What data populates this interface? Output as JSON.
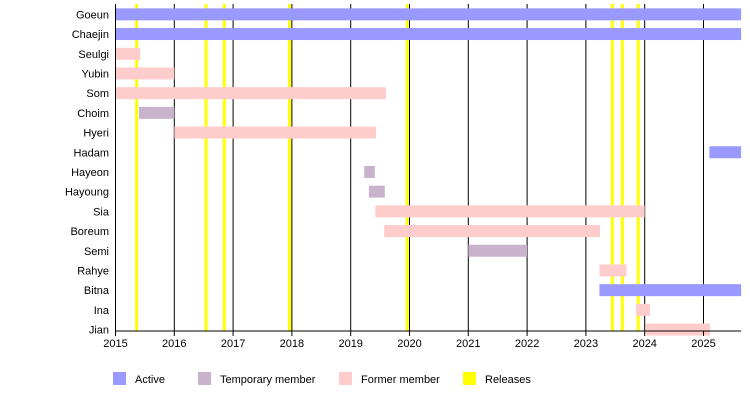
{
  "chart_data": {
    "type": "timeline",
    "xlim": [
      2015,
      2025.64
    ],
    "x_ticks": [
      2015,
      2016,
      2017,
      2018,
      2019,
      2020,
      2021,
      2022,
      2023,
      2024,
      2025
    ],
    "grid": true,
    "legend_placement": "bottom",
    "colors": {
      "active": "#9999ff",
      "temporary": "#c9b3cc",
      "former": "#ffcccc",
      "release": "#ffff00"
    },
    "legend": [
      {
        "key": "active",
        "label": "Active"
      },
      {
        "key": "temporary",
        "label": "Temporary member"
      },
      {
        "key": "former",
        "label": "Former member"
      },
      {
        "key": "release",
        "label": "Releases"
      }
    ],
    "members": [
      {
        "name": "Goeun",
        "spans": [
          {
            "start": 2015.0,
            "end": 2025.64,
            "status": "active"
          }
        ]
      },
      {
        "name": "Chaejin",
        "spans": [
          {
            "start": 2015.0,
            "end": 2025.64,
            "status": "active"
          }
        ]
      },
      {
        "name": "Seulgi",
        "spans": [
          {
            "start": 2015.0,
            "end": 2015.42,
            "status": "former"
          }
        ]
      },
      {
        "name": "Yubin",
        "spans": [
          {
            "start": 2015.0,
            "end": 2016.0,
            "status": "former"
          }
        ]
      },
      {
        "name": "Som",
        "spans": [
          {
            "start": 2015.0,
            "end": 2019.6,
            "status": "former"
          }
        ]
      },
      {
        "name": "Choim",
        "spans": [
          {
            "start": 2015.4,
            "end": 2016.0,
            "status": "temporary"
          }
        ]
      },
      {
        "name": "Hyeri",
        "spans": [
          {
            "start": 2016.0,
            "end": 2019.43,
            "status": "former"
          }
        ]
      },
      {
        "name": "Hadam",
        "spans": [
          {
            "start": 2025.1,
            "end": 2025.64,
            "status": "active"
          }
        ]
      },
      {
        "name": "Hayeon",
        "spans": [
          {
            "start": 2019.23,
            "end": 2019.41,
            "status": "temporary"
          }
        ]
      },
      {
        "name": "Hayoung",
        "spans": [
          {
            "start": 2019.31,
            "end": 2019.58,
            "status": "temporary"
          }
        ]
      },
      {
        "name": "Sia",
        "spans": [
          {
            "start": 2019.42,
            "end": 2024.0,
            "status": "former"
          }
        ]
      },
      {
        "name": "Boreum",
        "spans": [
          {
            "start": 2019.57,
            "end": 2023.24,
            "status": "former"
          }
        ]
      },
      {
        "name": "Semi",
        "spans": [
          {
            "start": 2021.0,
            "end": 2022.0,
            "status": "temporary"
          }
        ]
      },
      {
        "name": "Rahye",
        "spans": [
          {
            "start": 2023.23,
            "end": 2023.69,
            "status": "former"
          }
        ]
      },
      {
        "name": "Bitna",
        "spans": [
          {
            "start": 2023.23,
            "end": 2025.64,
            "status": "active"
          }
        ]
      },
      {
        "name": "Ina",
        "spans": [
          {
            "start": 2023.85,
            "end": 2024.09,
            "status": "former"
          }
        ]
      },
      {
        "name": "Jian",
        "spans": [
          {
            "start": 2024.02,
            "end": 2025.11,
            "status": "former"
          }
        ]
      }
    ],
    "releases": [
      2015.36,
      2016.54,
      2016.85,
      2017.96,
      2019.96,
      2023.45,
      2023.62,
      2023.89
    ]
  }
}
